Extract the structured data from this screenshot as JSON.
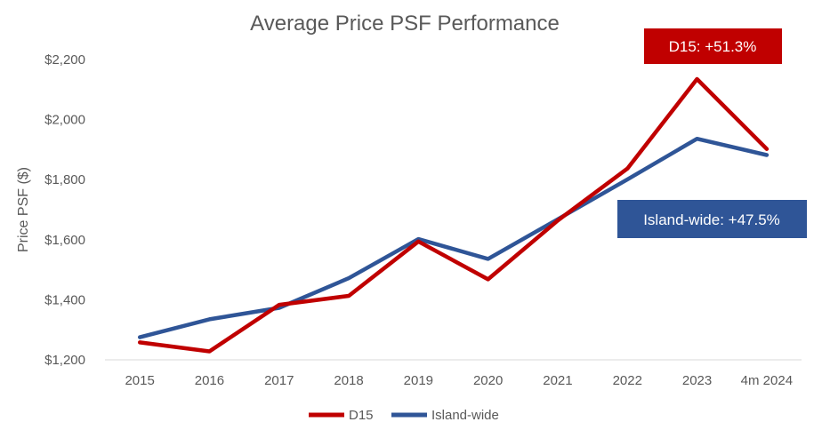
{
  "chart_data": {
    "type": "line",
    "title": "Average Price PSF Performance",
    "xlabel": "",
    "ylabel": "Price PSF ($)",
    "categories": [
      "2015",
      "2016",
      "2017",
      "2018",
      "2019",
      "2020",
      "2021",
      "2022",
      "2023",
      "4m 2024"
    ],
    "ylim": [
      1200,
      2200
    ],
    "yticks": [
      1200,
      1400,
      1600,
      1800,
      2000,
      2200
    ],
    "ytick_labels": [
      "$1,200",
      "$1,400",
      "$1,600",
      "$1,800",
      "$2,000",
      "$2,200"
    ],
    "grid": false,
    "legend": "bottom",
    "series": [
      {
        "name": "D15",
        "color": "#C00000",
        "values": [
          1258,
          1228,
          1383,
          1413,
          1594,
          1468,
          1664,
          1837,
          2135,
          1902
        ]
      },
      {
        "name": "Island-wide",
        "color": "#2F5597",
        "values": [
          1275,
          1335,
          1373,
          1472,
          1602,
          1536,
          1668,
          1801,
          1936,
          1882
        ]
      }
    ],
    "annotations": [
      {
        "text": "D15: +51.3%",
        "color": "#C00000"
      },
      {
        "text": "Island-wide: +47.5%",
        "color": "#2F5597"
      }
    ]
  }
}
